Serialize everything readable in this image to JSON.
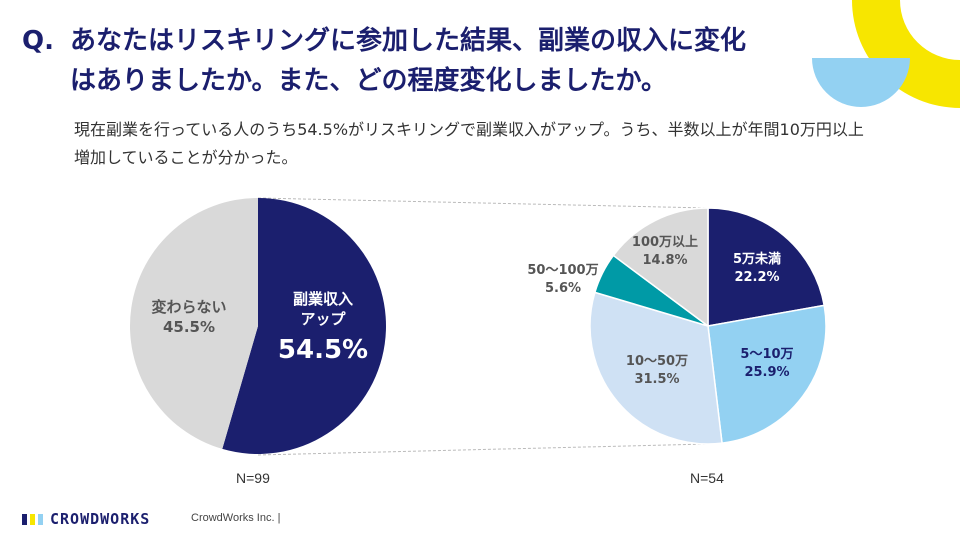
{
  "question": {
    "mark": "Q.",
    "line1": "あなたはリスキリングに参加した結果、副業の収入に変化",
    "line2": "はありましたか。また、どの程度変化しましたか。"
  },
  "summary": "現在副業を行っている人のうち54.5%がリスキリングで副業収入がアップ。うち、半数以上が年間10万円以上増加していることが分かった。",
  "chart_data": [
    {
      "type": "pie",
      "title": "",
      "n_label": "N=99",
      "slices": [
        {
          "name": "副業収入アップ",
          "label_lines": [
            "副業収入",
            "アップ"
          ],
          "value": 54.5,
          "value_label": "54.5%",
          "color": "#1b1f6e",
          "text_color": "#ffffff"
        },
        {
          "name": "変わらない",
          "label_lines": [
            "変わらない"
          ],
          "value": 45.5,
          "value_label": "45.5%",
          "color": "#d9d9d9",
          "text_color": "#555555"
        }
      ]
    },
    {
      "type": "pie",
      "title": "",
      "n_label": "N=54",
      "slices": [
        {
          "name": "5万未満",
          "value": 22.2,
          "value_label": "22.2%",
          "color": "#1b1f6e",
          "text_color": "#ffffff"
        },
        {
          "name": "5～10万",
          "value": 25.9,
          "value_label": "25.9%",
          "color": "#93d1f2",
          "text_color": "#1b1f6e"
        },
        {
          "name": "10～50万",
          "value": 31.5,
          "value_label": "31.5%",
          "color": "#cfe1f4",
          "text_color": "#555555"
        },
        {
          "name": "50～100万",
          "value": 5.6,
          "value_label": "5.6%",
          "color": "#009aa6",
          "text_color": "#555555"
        },
        {
          "name": "100万以上",
          "value": 14.8,
          "value_label": "14.8%",
          "color": "#d9d9d9",
          "text_color": "#555555"
        }
      ]
    }
  ],
  "footer": {
    "logo_text": "CROWDWORKS",
    "company": "CrowdWorks Inc. |"
  },
  "colors": {
    "navy": "#1b1f6e",
    "yellow": "#f7e600",
    "light_blue": "#93d1f2",
    "connector": "#bbbbbb"
  }
}
